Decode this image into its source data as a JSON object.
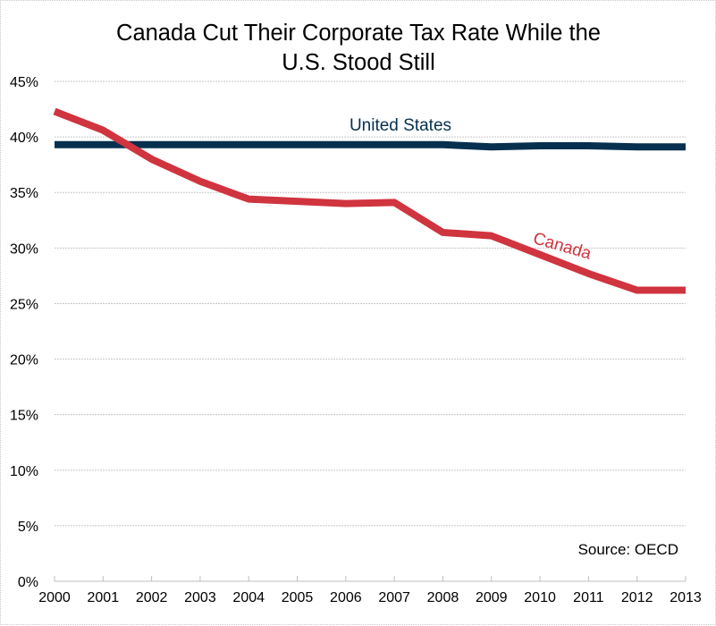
{
  "chart_data": {
    "type": "line",
    "title": [
      "Canada Cut Their Corporate Tax Rate While the",
      "U.S. Stood Still"
    ],
    "xlabel": "",
    "ylabel": "",
    "x": [
      2000,
      2001,
      2002,
      2003,
      2004,
      2005,
      2006,
      2007,
      2008,
      2009,
      2010,
      2011,
      2012,
      2013
    ],
    "x_tick_labels": [
      "2000",
      "2001",
      "2002",
      "2003",
      "2004",
      "2005",
      "2006",
      "2007",
      "2008",
      "2009",
      "2010",
      "2011",
      "2012",
      "2013"
    ],
    "ylim": [
      0,
      45
    ],
    "y_ticks": [
      0,
      5,
      10,
      15,
      20,
      25,
      30,
      35,
      40,
      45
    ],
    "y_tick_labels": [
      "0%",
      "5%",
      "10%",
      "15%",
      "20%",
      "25%",
      "30%",
      "35%",
      "40%",
      "45%"
    ],
    "grid": true,
    "series": [
      {
        "name": "United States",
        "color": "#06304e",
        "values": [
          39.3,
          39.3,
          39.3,
          39.3,
          39.3,
          39.3,
          39.3,
          39.3,
          39.3,
          39.1,
          39.2,
          39.2,
          39.1,
          39.1
        ]
      },
      {
        "name": "Canada",
        "color": "#d0343f",
        "values": [
          42.3,
          40.6,
          38.0,
          36.0,
          34.4,
          34.2,
          34.0,
          34.1,
          31.4,
          31.1,
          29.4,
          27.7,
          26.2,
          26.2
        ]
      }
    ],
    "annotations": {
      "source": "Source: OECD"
    },
    "legend": "inline-labels"
  }
}
